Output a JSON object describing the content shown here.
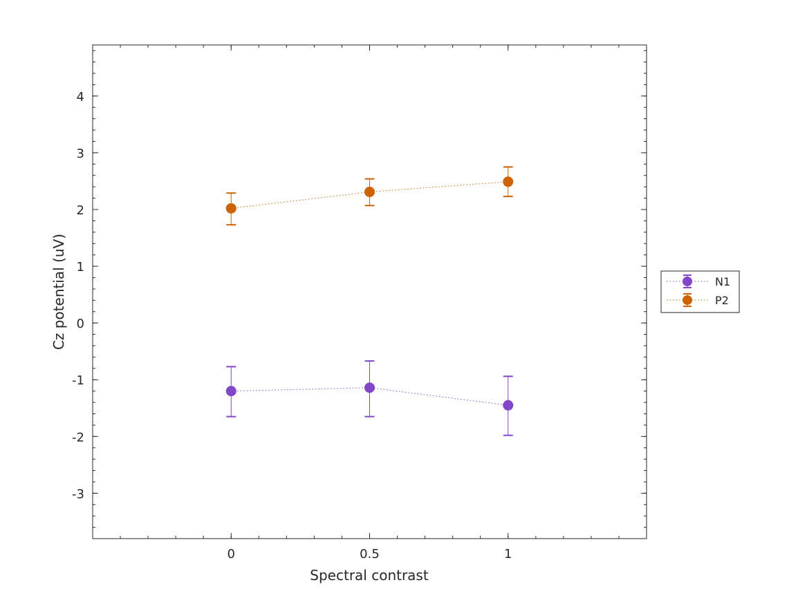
{
  "chart_data": {
    "type": "line",
    "title": "",
    "xlabel": "Spectral contrast",
    "ylabel": "Cz potential (uV)",
    "xlim": [
      -0.5,
      1.5
    ],
    "ylim": [
      -3.8,
      4.9
    ],
    "x_ticks": [
      0,
      0.5,
      1
    ],
    "x_tick_labels": [
      "0",
      "0.5",
      "1"
    ],
    "y_ticks": [
      -3,
      -2,
      -1,
      0,
      1,
      2,
      3,
      4
    ],
    "y_tick_labels": [
      "-3",
      "-2",
      "-1",
      "0",
      "1",
      "2",
      "3",
      "4"
    ],
    "grid": false,
    "legend_placement": "outside-right",
    "x": [
      0,
      0.5,
      1
    ],
    "series": [
      {
        "name": "N1",
        "color": "#8246c8",
        "values": [
          -1.2,
          -1.14,
          -1.45
        ],
        "lower": [
          -1.65,
          -1.65,
          -1.98
        ],
        "upper": [
          -0.77,
          -0.67,
          -0.94
        ]
      },
      {
        "name": "P2",
        "color": "#cc6200",
        "values": [
          2.02,
          2.31,
          2.49
        ],
        "lower": [
          1.73,
          2.07,
          2.23
        ],
        "upper": [
          2.29,
          2.54,
          2.75
        ]
      }
    ]
  }
}
